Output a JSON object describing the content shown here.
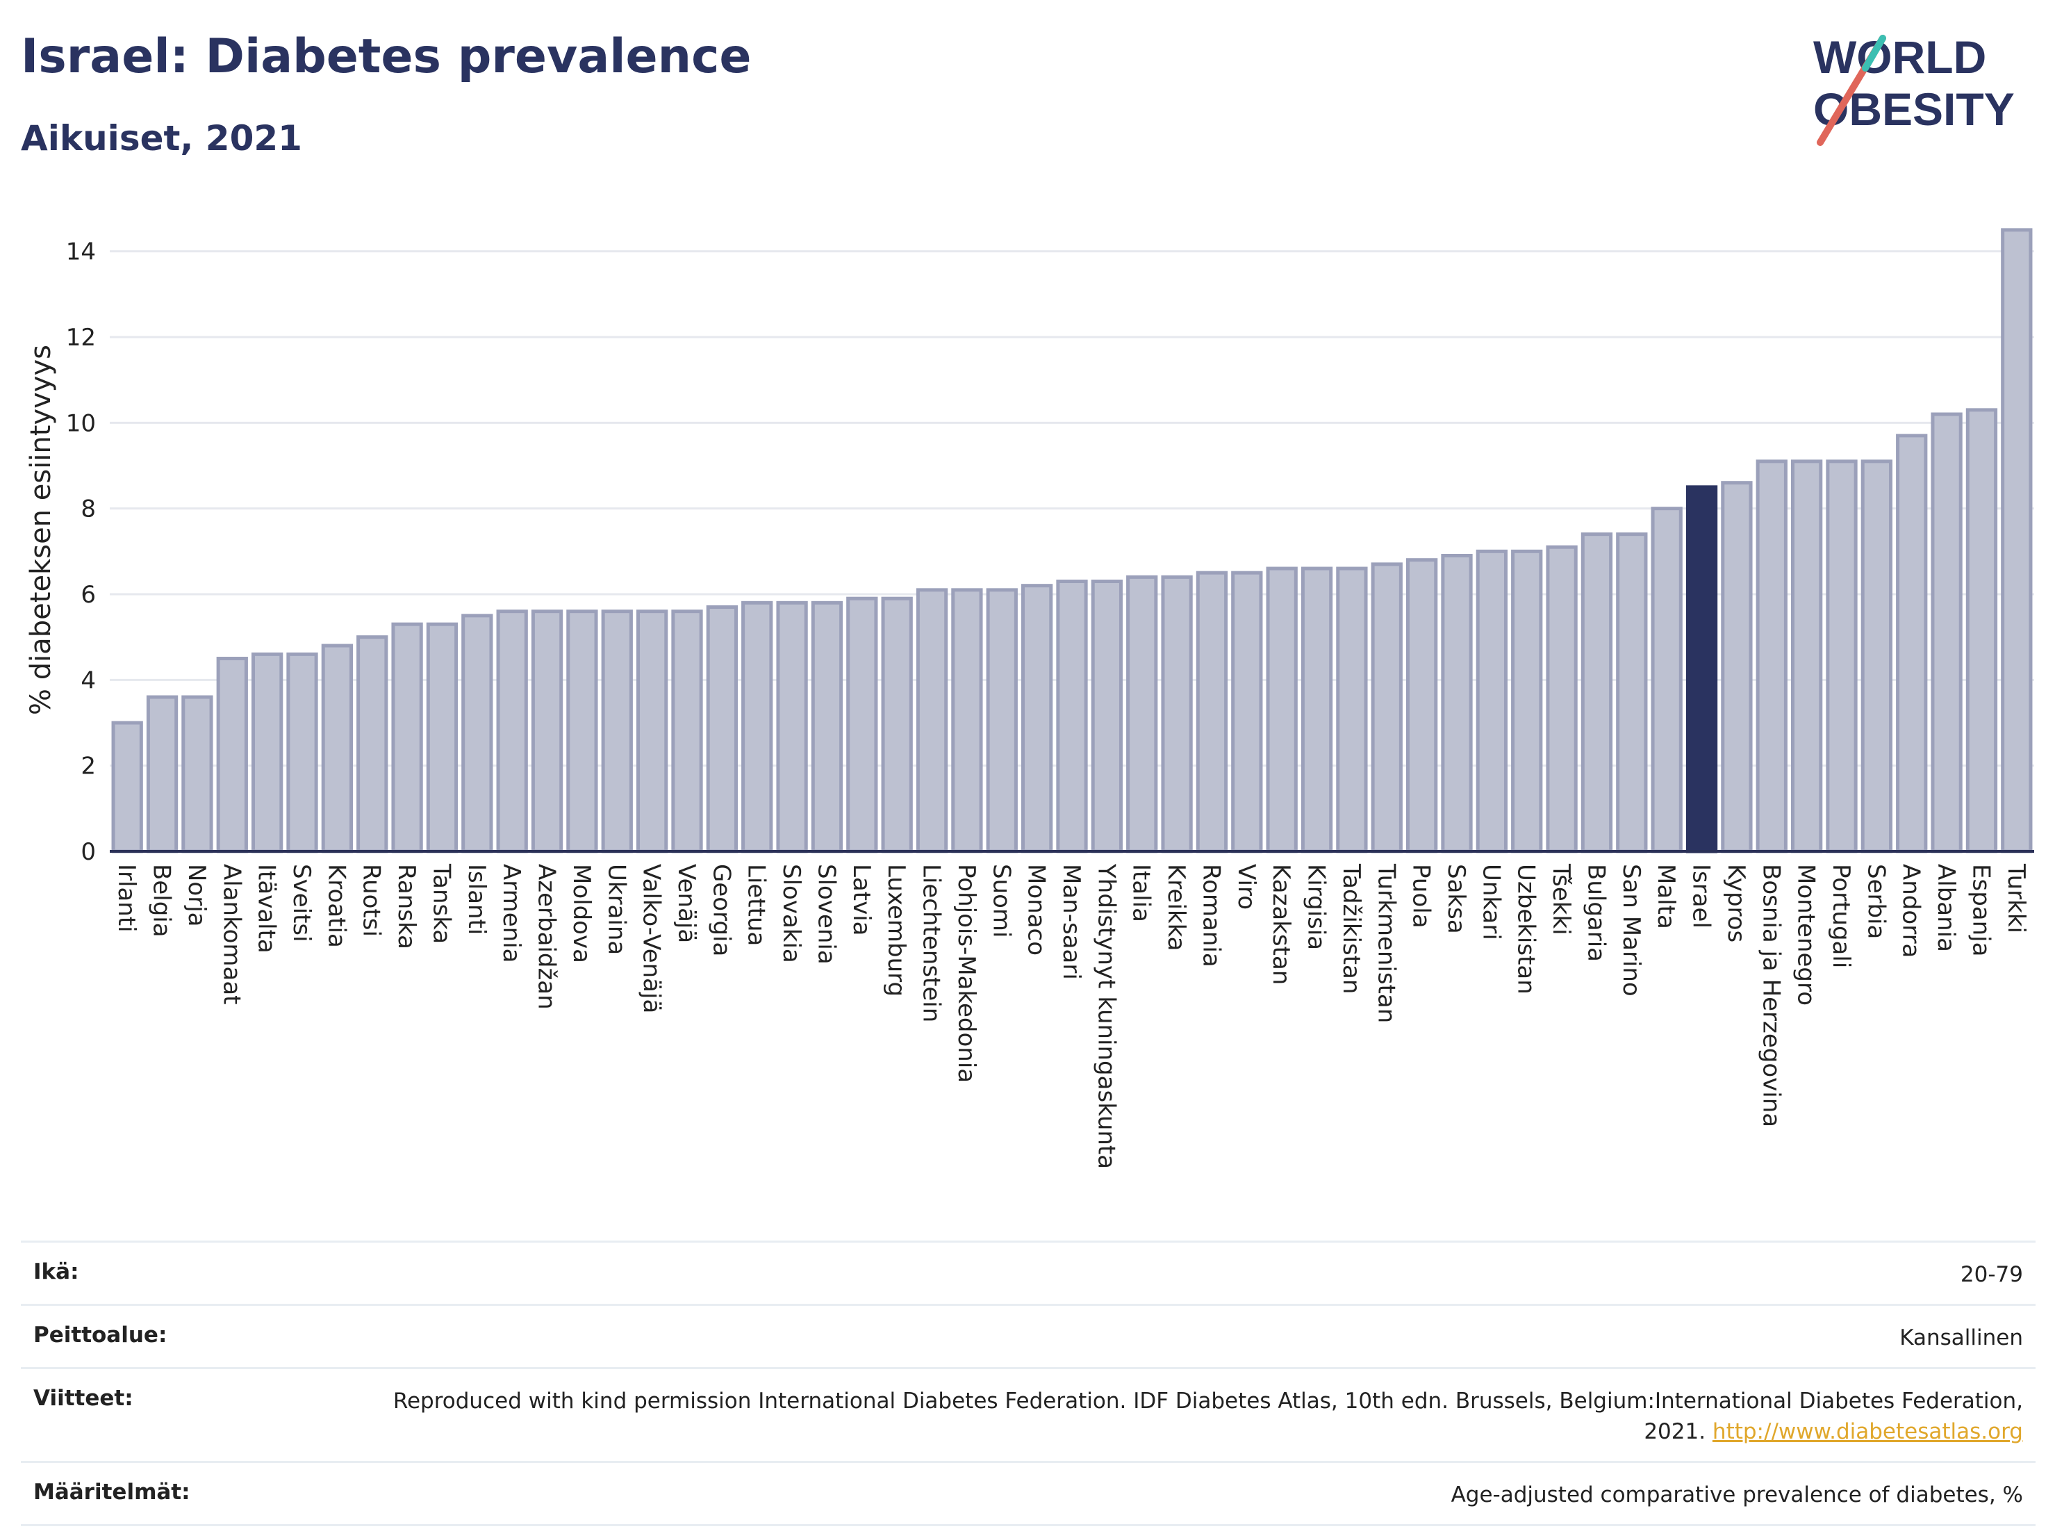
{
  "title": "Israel: Diabetes prevalence",
  "subtitle": "Aikuiset, 2021",
  "logo": {
    "line1": "WORLD",
    "line2": "OBESITY",
    "colors": [
      "#2a3360",
      "#e0665a",
      "#3bbfb2"
    ]
  },
  "chart_data": {
    "type": "bar",
    "ylabel": "% diabeteksen esiintyvyys",
    "ylim": [
      0,
      15
    ],
    "yticks": [
      0,
      2,
      4,
      6,
      8,
      10,
      12,
      14
    ],
    "grid": true,
    "highlight": "Israel",
    "colors": {
      "bar": "#bdc1d1",
      "bar_border": "#9ba0ba",
      "highlight": "#2a3360",
      "grid": "#e6e8ee"
    },
    "categories": [
      "Irlanti",
      "Belgia",
      "Norja",
      "Alankomaat",
      "Itävalta",
      "Sveitsi",
      "Kroatia",
      "Ruotsi",
      "Ranska",
      "Tanska",
      "Islanti",
      "Armenia",
      "Azerbaidžan",
      "Moldova",
      "Ukraina",
      "Valko-Venäjä",
      "Venäjä",
      "Georgia",
      "Liettua",
      "Slovakia",
      "Slovenia",
      "Latvia",
      "Luxemburg",
      "Liechtenstein",
      "Pohjois-Makedonia",
      "Suomi",
      "Monaco",
      "Man-saari",
      "Yhdistynyt kuningaskunta",
      "Italia",
      "Kreikka",
      "Romania",
      "Viro",
      "Kazakstan",
      "Kirgisia",
      "Tadžikistan",
      "Turkmenistan",
      "Puola",
      "Saksa",
      "Unkari",
      "Uzbekistan",
      "Tšekki",
      "Bulgaria",
      "San Marino",
      "Malta",
      "Israel",
      "Kypros",
      "Bosnia ja Herzegovina",
      "Montenegro",
      "Portugali",
      "Serbia",
      "Andorra",
      "Albania",
      "Espanja",
      "Turkki"
    ],
    "values": [
      3.0,
      3.6,
      3.6,
      4.5,
      4.6,
      4.6,
      4.8,
      5.0,
      5.3,
      5.3,
      5.5,
      5.6,
      5.6,
      5.6,
      5.6,
      5.6,
      5.6,
      5.7,
      5.8,
      5.8,
      5.8,
      5.9,
      5.9,
      6.1,
      6.1,
      6.1,
      6.2,
      6.3,
      6.3,
      6.4,
      6.4,
      6.5,
      6.5,
      6.6,
      6.6,
      6.6,
      6.7,
      6.8,
      6.9,
      7.0,
      7.0,
      7.1,
      7.4,
      7.4,
      8.0,
      8.5,
      8.6,
      9.1,
      9.1,
      9.1,
      9.1,
      9.7,
      10.2,
      10.3,
      14.5
    ]
  },
  "meta": [
    {
      "key": "Ikä:",
      "value": "20-79"
    },
    {
      "key": "Peittoalue:",
      "value": "Kansallinen"
    },
    {
      "key": "Viitteet:",
      "value": "Reproduced with kind permission International Diabetes Federation.  IDF Diabetes Atlas, 10th edn. Brussels, Belgium:International Diabetes Federation, 2021.",
      "link": "http://www.diabetesatlas.org"
    },
    {
      "key": "Määritelmät:",
      "value": "Age-adjusted comparative prevalence of diabetes, %"
    }
  ]
}
